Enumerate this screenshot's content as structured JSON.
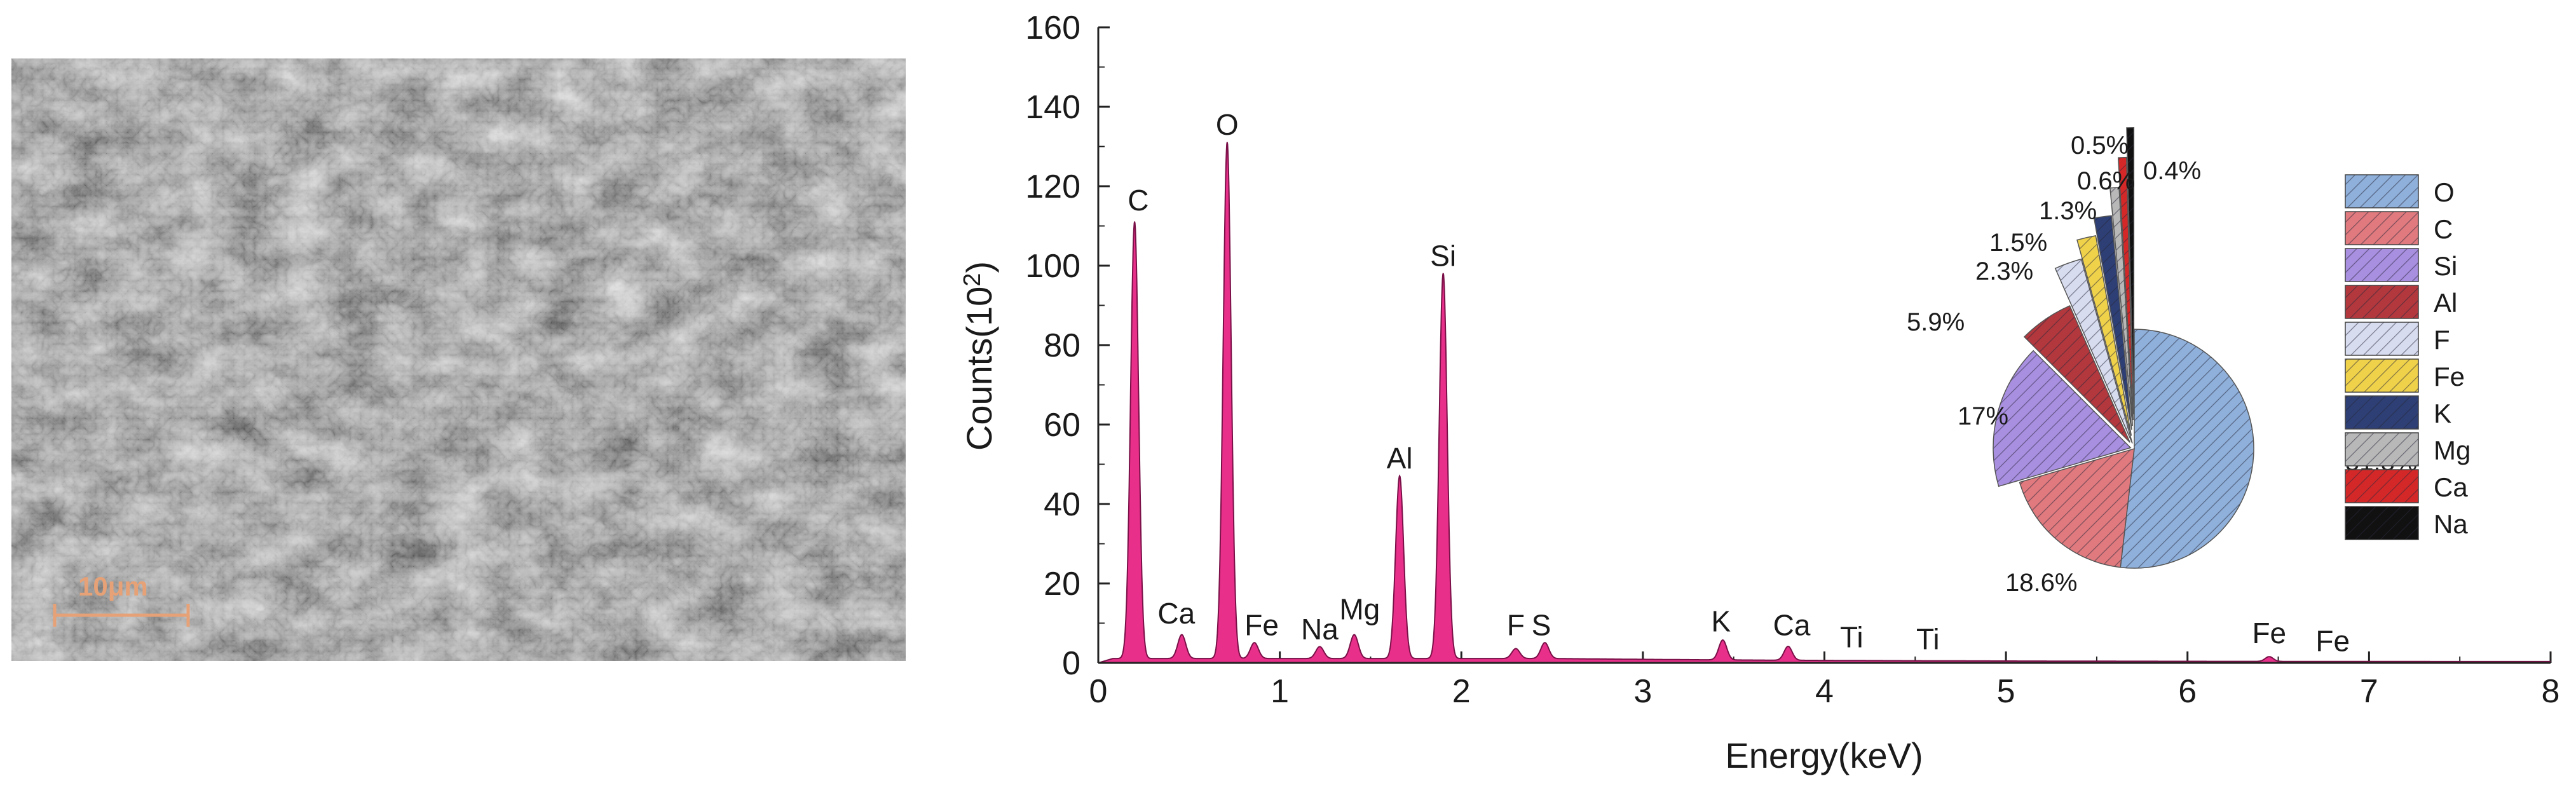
{
  "sem_image": {
    "scale_bar_label": "10μm",
    "scale_bar_color": "#e7a176"
  },
  "chart_data": [
    {
      "type": "area",
      "xlabel": "Energy(keV)",
      "ylabel_main": "Counts(10",
      "ylabel_sup": "2",
      "ylabel_close": ")",
      "xlim": [
        0,
        8
      ],
      "ylim": [
        0,
        160
      ],
      "x_ticks": [
        "0",
        "1",
        "2",
        "3",
        "4",
        "5",
        "6",
        "7",
        "8"
      ],
      "y_ticks": [
        "0",
        "20",
        "40",
        "60",
        "80",
        "100",
        "120",
        "140",
        "160"
      ],
      "color": "#e8308a",
      "background_level": 0.8,
      "peaks": [
        {
          "label": "C",
          "energy": 0.2,
          "counts": 110,
          "label_x": 0.22,
          "label_y": 113
        },
        {
          "label": "Ca",
          "energy": 0.46,
          "counts": 6,
          "label_x": 0.43,
          "label_y": 9
        },
        {
          "label": "O",
          "energy": 0.71,
          "counts": 130,
          "label_x": 0.71,
          "label_y": 132
        },
        {
          "label": "Fe",
          "energy": 0.86,
          "counts": 4,
          "label_x": 0.9,
          "label_y": 6
        },
        {
          "label": "Na",
          "energy": 1.22,
          "counts": 3,
          "label_x": 1.22,
          "label_y": 5
        },
        {
          "label": "Mg",
          "energy": 1.41,
          "counts": 6,
          "label_x": 1.44,
          "label_y": 10
        },
        {
          "label": "Al",
          "energy": 1.66,
          "counts": 46,
          "label_x": 1.66,
          "label_y": 48
        },
        {
          "label": "Si",
          "energy": 1.9,
          "counts": 97,
          "label_x": 1.9,
          "label_y": 99
        },
        {
          "label": "F",
          "energy": 2.3,
          "counts": 2.5,
          "label_x": 2.3,
          "label_y": 6
        },
        {
          "label": "S",
          "energy": 2.46,
          "counts": 4,
          "label_x": 2.44,
          "label_y": 6
        },
        {
          "label": "K",
          "energy": 3.44,
          "counts": 5,
          "label_x": 3.43,
          "label_y": 7
        },
        {
          "label": "Ca",
          "energy": 3.8,
          "counts": 3.5,
          "label_x": 3.82,
          "label_y": 6
        },
        {
          "label": "Ti",
          "energy": 4.15,
          "counts": 0,
          "label_x": 4.15,
          "label_y": 3
        },
        {
          "label": "Ti",
          "energy": 4.57,
          "counts": 0,
          "label_x": 4.57,
          "label_y": 2.5
        },
        {
          "label": "Fe",
          "energy": 6.45,
          "counts": 1.2,
          "label_x": 6.45,
          "label_y": 4
        },
        {
          "label": "Fe",
          "energy": 6.8,
          "counts": 0,
          "label_x": 6.8,
          "label_y": 2
        }
      ]
    },
    {
      "type": "pie",
      "slices": [
        {
          "name": "O",
          "value": 51.8,
          "label": "51.8%",
          "color": "#8fb0da"
        },
        {
          "name": "C",
          "value": 18.6,
          "label": "18.6%",
          "color": "#e07a7e"
        },
        {
          "name": "Si",
          "value": 17,
          "label": "17%",
          "color": "#a98fe0"
        },
        {
          "name": "Al",
          "value": 5.9,
          "label": "5.9%",
          "color": "#b2383d"
        },
        {
          "name": "F",
          "value": 2.3,
          "label": "2.3%",
          "color": "#d8dcef"
        },
        {
          "name": "Fe",
          "value": 1.5,
          "label": "1.5%",
          "color": "#f0d24a"
        },
        {
          "name": "K",
          "value": 1.3,
          "label": "1.3%",
          "color": "#2d3f74"
        },
        {
          "name": "Mg",
          "value": 0.6,
          "label": "0.6%",
          "color": "#b8b8b8"
        },
        {
          "name": "Ca",
          "value": 0.5,
          "label": "0.5%",
          "color": "#d42828"
        },
        {
          "name": "Na",
          "value": 0.4,
          "label": "0.4%",
          "color": "#111111"
        }
      ],
      "legend": [
        "O",
        "C",
        "Si",
        "Al",
        "F",
        "Fe",
        "K",
        "Mg",
        "Ca",
        "Na"
      ],
      "legend_placement": "right"
    }
  ]
}
